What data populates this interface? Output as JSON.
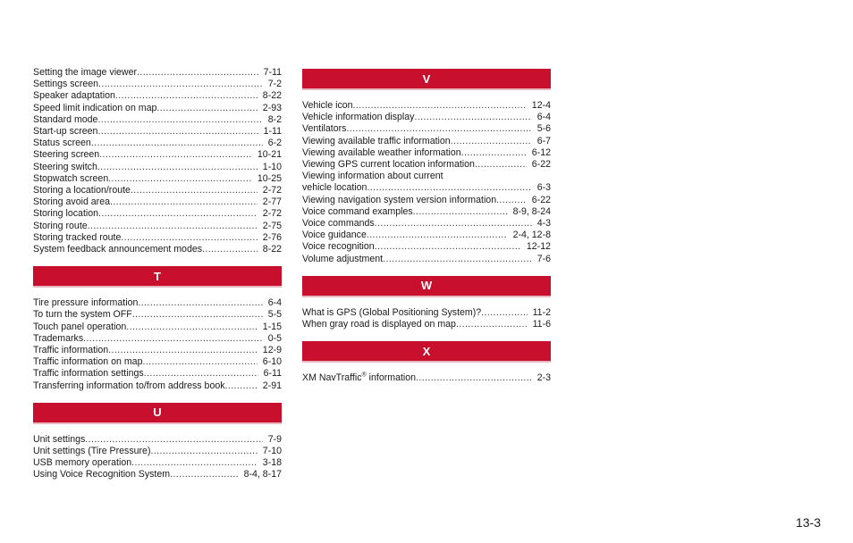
{
  "left_column": {
    "s_continued": [
      {
        "text": "Setting the image viewer",
        "page": "7-11"
      },
      {
        "text": "Settings screen",
        "page": "7-2"
      },
      {
        "text": "Speaker adaptation",
        "page": "8-22"
      },
      {
        "text": "Speed limit indication on map",
        "page": "2-93"
      },
      {
        "text": "Standard mode",
        "page": "8-2"
      },
      {
        "text": "Start-up screen",
        "page": "1-11"
      },
      {
        "text": "Status screen",
        "page": "6-2"
      },
      {
        "text": "Steering screen",
        "page": "10-21"
      },
      {
        "text": "Steering switch",
        "page": "1-10"
      },
      {
        "text": "Stopwatch screen",
        "page": "10-25"
      },
      {
        "text": "Storing a location/route",
        "page": "2-72"
      },
      {
        "text": "Storing avoid area",
        "page": "2-77"
      },
      {
        "text": "Storing location",
        "page": "2-72"
      },
      {
        "text": "Storing route",
        "page": "2-75"
      },
      {
        "text": "Storing tracked route",
        "page": "2-76"
      },
      {
        "text": "System feedback announcement modes",
        "page": "8-22"
      }
    ],
    "section_t": {
      "letter": "T",
      "entries": [
        {
          "text": "Tire pressure information",
          "page": "6-4"
        },
        {
          "text": "To turn the system OFF",
          "page": "5-5"
        },
        {
          "text": "Touch panel operation",
          "page": "1-15"
        },
        {
          "text": "Trademarks",
          "page": "0-5"
        },
        {
          "text": "Traffic information",
          "page": "12-9"
        },
        {
          "text": "Traffic information on map",
          "page": "6-10"
        },
        {
          "text": "Traffic information settings",
          "page": "6-11"
        },
        {
          "text": "Transferring information to/from address book",
          "page": "2-91"
        }
      ]
    },
    "section_u": {
      "letter": "U",
      "entries": [
        {
          "text": "Unit settings",
          "page": "7-9"
        },
        {
          "text": "Unit settings (Tire Pressure)",
          "page": "7-10"
        },
        {
          "text": "USB memory operation",
          "page": "3-18"
        },
        {
          "text": "Using Voice Recognition System",
          "page": "8-4, 8-17"
        }
      ]
    }
  },
  "right_column": {
    "section_v": {
      "letter": "V",
      "entries": [
        {
          "text": "Vehicle icon",
          "page": "12-4"
        },
        {
          "text": "Vehicle information display",
          "page": "6-4"
        },
        {
          "text": "Ventilators",
          "page": "5-6"
        },
        {
          "text": "Viewing available traffic information",
          "page": "6-7"
        },
        {
          "text": "Viewing available weather information",
          "page": "6-12"
        },
        {
          "text": "Viewing GPS current location information",
          "page": "6-22"
        },
        {
          "text_line1": "Viewing information about current",
          "text": "vehicle location",
          "page": "6-3"
        },
        {
          "text": "Viewing navigation system version information",
          "page": "6-22"
        },
        {
          "text": "Voice command examples",
          "page": "8-9, 8-24"
        },
        {
          "text": "Voice commands",
          "page": "4-3"
        },
        {
          "text": "Voice guidance",
          "page": "2-4, 12-8"
        },
        {
          "text": "Voice recognition",
          "page": "12-12"
        },
        {
          "text": "Volume adjustment",
          "page": "7-6"
        }
      ]
    },
    "section_w": {
      "letter": "W",
      "entries": [
        {
          "text": "What is GPS (Global Positioning System)?",
          "page": "11-2"
        },
        {
          "text": "When gray road is displayed on map",
          "page": "11-6"
        }
      ]
    },
    "section_x": {
      "letter": "X",
      "entry": {
        "text_before": "XM NavTraffic",
        "sup": "®",
        "text_after": " information",
        "page": "2-3"
      }
    }
  },
  "page_number": "13-3",
  "colors": {
    "section_header_bg": "#c8102e",
    "section_header_text": "#ffffff"
  }
}
